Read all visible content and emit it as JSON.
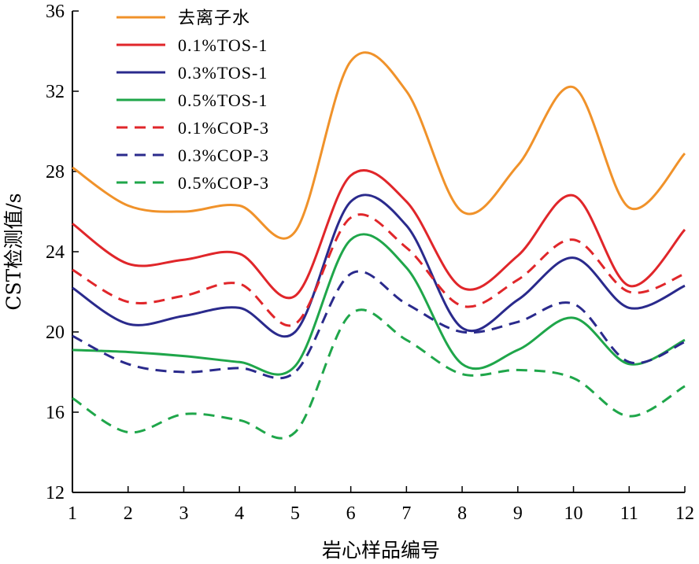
{
  "chart_data": {
    "type": "line",
    "xlabel": "岩心样品编号",
    "ylabel": "CST检测值/s",
    "xlim": [
      1,
      12
    ],
    "ylim": [
      12,
      36
    ],
    "x_ticks": [
      1,
      2,
      3,
      4,
      5,
      6,
      7,
      8,
      9,
      10,
      11,
      12
    ],
    "y_ticks": [
      12,
      16,
      20,
      24,
      28,
      32,
      36
    ],
    "x": [
      1,
      2,
      3,
      4,
      5,
      6,
      7,
      8,
      9,
      10,
      11,
      12
    ],
    "grid": false,
    "legend_position": "top-left",
    "smooth": true,
    "series": [
      {
        "name": "去离子水",
        "color": "#f0922a",
        "dash": "solid",
        "values": [
          28.2,
          26.3,
          26.0,
          26.3,
          25.0,
          33.5,
          32.0,
          26.0,
          28.3,
          32.2,
          26.2,
          28.9
        ]
      },
      {
        "name": "0.1%TOS-1",
        "color": "#e0262a",
        "dash": "solid",
        "values": [
          25.4,
          23.4,
          23.6,
          23.9,
          21.8,
          27.8,
          26.5,
          22.2,
          23.8,
          26.8,
          22.3,
          25.1
        ]
      },
      {
        "name": "0.3%TOS-1",
        "color": "#2a2a8c",
        "dash": "solid",
        "values": [
          22.2,
          20.4,
          20.8,
          21.2,
          20.0,
          26.5,
          25.3,
          20.2,
          21.6,
          23.7,
          21.2,
          22.3
        ]
      },
      {
        "name": "0.5%TOS-1",
        "color": "#1fa64a",
        "dash": "solid",
        "values": [
          19.1,
          19.0,
          18.8,
          18.5,
          18.3,
          24.6,
          23.2,
          18.4,
          19.1,
          20.7,
          18.4,
          19.6
        ]
      },
      {
        "name": "0.1%COP-3",
        "color": "#e0262a",
        "dash": "dashed",
        "values": [
          23.1,
          21.5,
          21.8,
          22.4,
          20.4,
          25.7,
          24.2,
          21.3,
          22.6,
          24.6,
          22.0,
          22.9
        ]
      },
      {
        "name": "0.3%COP-3",
        "color": "#2a2a8c",
        "dash": "dashed",
        "values": [
          19.8,
          18.4,
          18.0,
          18.2,
          18.0,
          22.9,
          21.4,
          20.0,
          20.5,
          21.4,
          18.5,
          19.5
        ]
      },
      {
        "name": "0.5%COP-3",
        "color": "#1fa64a",
        "dash": "dashed",
        "values": [
          16.7,
          15.0,
          15.9,
          15.6,
          15.0,
          20.9,
          19.6,
          17.9,
          18.1,
          17.7,
          15.8,
          17.3
        ]
      }
    ]
  }
}
